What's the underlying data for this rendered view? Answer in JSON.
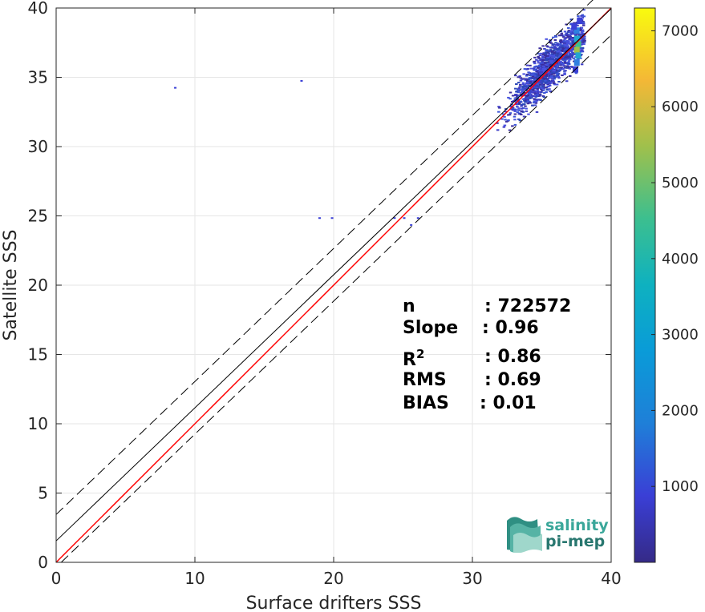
{
  "chart_data": {
    "type": "heatmap",
    "xlabel": "Surface drifters SSS",
    "ylabel": "Satellite SSS",
    "xlim": [
      0,
      40
    ],
    "ylim": [
      0,
      40
    ],
    "xticks": [
      0,
      10,
      20,
      30,
      40
    ],
    "yticks": [
      0,
      5,
      10,
      15,
      20,
      25,
      30,
      35,
      40
    ],
    "grid": true,
    "colorbar": {
      "colormap": "parula",
      "range": [
        0,
        7300
      ],
      "ticks": [
        1000,
        2000,
        3000,
        4000,
        5000,
        6000,
        7000
      ]
    },
    "lines": [
      {
        "kind": "one-to-one",
        "color": "#ff0000",
        "style": "solid",
        "from": [
          0,
          0
        ],
        "to": [
          40,
          40
        ]
      },
      {
        "kind": "regression",
        "color": "#000000",
        "style": "solid",
        "intercept": 1.55,
        "slope": 0.96
      },
      {
        "kind": "upper-bound",
        "color": "#000000",
        "style": "dashed",
        "intercept": 3.45,
        "slope": 0.96
      },
      {
        "kind": "lower-bound",
        "color": "#000000",
        "style": "dashed",
        "intercept": -0.35,
        "slope": 0.96
      }
    ],
    "density_cloud": {
      "center": [
        35.5,
        35.5
      ],
      "x_range": [
        29.5,
        38.0
      ],
      "y_range": [
        27.5,
        40.0
      ],
      "peak": [
        37.4,
        37.6
      ]
    },
    "outliers": [
      [
        8.5,
        34.3
      ],
      [
        17.6,
        34.8
      ],
      [
        18.9,
        24.9
      ],
      [
        19.8,
        24.9
      ],
      [
        24.3,
        24.9
      ],
      [
        25.0,
        24.9
      ],
      [
        26.0,
        24.9
      ],
      [
        25.5,
        24.4
      ]
    ],
    "stats": [
      {
        "label": "n",
        "value": ": 722572"
      },
      {
        "label": "Slope",
        "value": ": 0.96"
      },
      {
        "label": "R",
        "sup": "2",
        "value": ": 0.86"
      },
      {
        "label": "RMS",
        "value": ": 0.69"
      },
      {
        "label": "BIAS",
        "value": ": 0.01"
      }
    ]
  },
  "logo": {
    "line1": "salinity",
    "line2": "pi-mep"
  }
}
